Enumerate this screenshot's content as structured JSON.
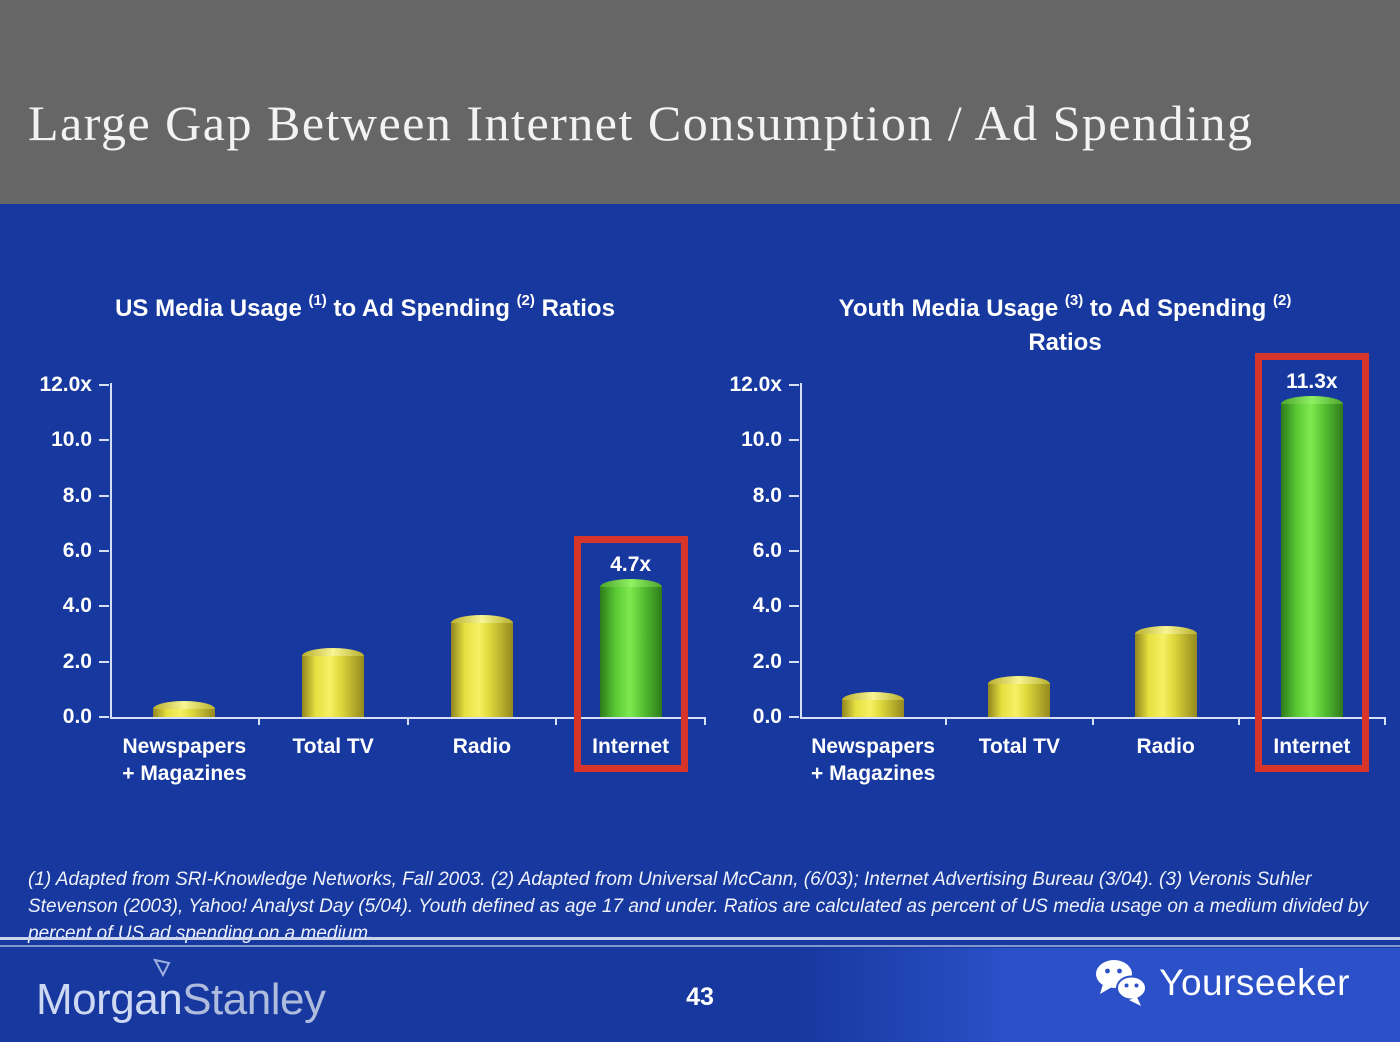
{
  "slide": {
    "title": "Large Gap Between Internet Consumption / Ad Spending",
    "page_number": "43",
    "footnote": "(1) Adapted from SRI-Knowledge Networks, Fall 2003.  (2) Adapted from Universal McCann, (6/03); Internet Advertising Bureau (3/04). (3) Veronis Suhler Stevenson (2003), Yahoo! Analyst Day (5/04).  Youth defined as age 17 and under.  Ratios are calculated as percent of US media usage on a medium divided by percent of US ad spending on a medium.",
    "brand": {
      "part1": "Morgan",
      "part2": "Stanley"
    },
    "watermark_label": "Yourseeker"
  },
  "colors": {
    "background_blue": "#17389E",
    "header_gray": "#666666",
    "bar_yellow": "#EDE84C",
    "bar_green": "#63D83A",
    "highlight_red": "#D8352A",
    "axis_line": "#D6DFF6",
    "footer_bright_blue": "#2B50C8"
  },
  "chart_data": [
    {
      "type": "bar",
      "title": "US Media Usage (1) to Ad Spending (2) Ratios",
      "title_lines": [
        [
          [
            "text",
            "US Media Usage "
          ],
          [
            "sup",
            "(1)"
          ],
          [
            "text",
            " to Ad Spending "
          ],
          [
            "sup",
            "(2)"
          ],
          [
            "text",
            " Ratios"
          ]
        ]
      ],
      "categories": [
        "Newspapers\n+ Magazines",
        "Total TV",
        "Radio",
        "Internet"
      ],
      "values": [
        0.3,
        2.2,
        3.4,
        4.7
      ],
      "bar_labels": [
        null,
        null,
        null,
        "4.7x"
      ],
      "highlight_index": 3,
      "ylim": [
        0,
        12
      ],
      "yticks": [
        {
          "label": "12.0x",
          "value": 12
        },
        {
          "label": "10.0",
          "value": 10
        },
        {
          "label": "8.0",
          "value": 8
        },
        {
          "label": "6.0",
          "value": 6
        },
        {
          "label": "4.0",
          "value": 4
        },
        {
          "label": "2.0",
          "value": 2
        },
        {
          "label": "0.0",
          "value": 0
        }
      ],
      "grid": false,
      "legend": null
    },
    {
      "type": "bar",
      "title": "Youth Media Usage (3) to Ad Spending (2) Ratios",
      "title_lines": [
        [
          [
            "text",
            "Youth Media Usage "
          ],
          [
            "sup",
            "(3)"
          ],
          [
            "text",
            " to Ad Spending "
          ],
          [
            "sup",
            "(2)"
          ]
        ],
        [
          [
            "text",
            "Ratios"
          ]
        ]
      ],
      "categories": [
        "Newspapers\n+ Magazines",
        "Total TV",
        "Radio",
        "Internet"
      ],
      "values": [
        0.6,
        1.2,
        3.0,
        11.3
      ],
      "bar_labels": [
        null,
        null,
        null,
        "11.3x"
      ],
      "highlight_index": 3,
      "ylim": [
        0,
        12
      ],
      "yticks": [
        {
          "label": "12.0x",
          "value": 12
        },
        {
          "label": "10.0",
          "value": 10
        },
        {
          "label": "8.0",
          "value": 8
        },
        {
          "label": "6.0",
          "value": 6
        },
        {
          "label": "4.0",
          "value": 4
        },
        {
          "label": "2.0",
          "value": 2
        },
        {
          "label": "0.0",
          "value": 0
        }
      ],
      "grid": false,
      "legend": null
    }
  ]
}
